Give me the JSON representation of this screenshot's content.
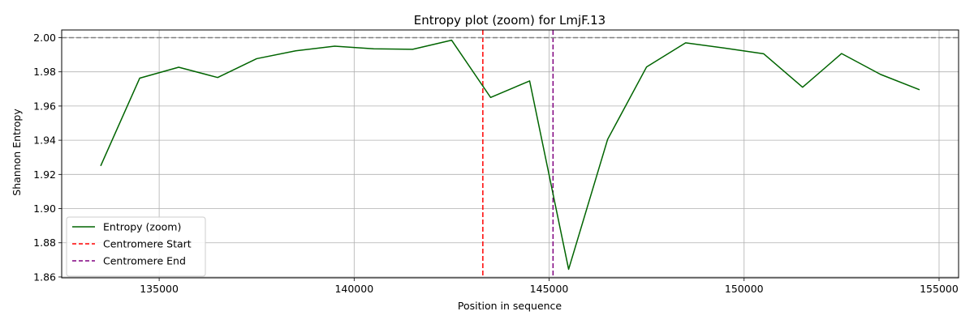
{
  "chart_data": {
    "type": "line",
    "title": "Entropy plot (zoom) for LmjF.13",
    "xlabel": "Position in sequence",
    "ylabel": "Shannon Entropy",
    "xlim": [
      132500,
      155500
    ],
    "ylim": [
      1.8595,
      2.0045
    ],
    "x_ticks": [
      135000,
      140000,
      145000,
      150000,
      155000
    ],
    "y_ticks": [
      1.86,
      1.88,
      1.9,
      1.92,
      1.94,
      1.96,
      1.98,
      2.0
    ],
    "grid": true,
    "legend_position": "lower-left",
    "series": [
      {
        "name": "Entropy (zoom)",
        "color": "#006400",
        "style": "solid",
        "x": [
          133500,
          134500,
          135500,
          136500,
          137500,
          138500,
          139500,
          140500,
          141500,
          142500,
          143500,
          144500,
          145500,
          146500,
          147500,
          148500,
          149500,
          150500,
          151500,
          152500,
          153500,
          154500
        ],
        "y": [
          1.925,
          1.9763,
          1.9827,
          1.9767,
          1.9877,
          1.9923,
          1.995,
          1.9935,
          1.9932,
          1.9985,
          1.965,
          1.9747,
          1.8645,
          1.9405,
          1.9829,
          1.997,
          1.9939,
          1.9906,
          1.971,
          1.9907,
          1.9785,
          1.9695
        ]
      }
    ],
    "reference_lines": [
      {
        "name": "Centromere Start",
        "orientation": "vertical",
        "value": 143300,
        "color": "#ff0000",
        "style": "dashed"
      },
      {
        "name": "Centromere End",
        "orientation": "vertical",
        "value": 145100,
        "color": "#800080",
        "style": "dashed"
      },
      {
        "name": "",
        "orientation": "horizontal",
        "value": 2.0,
        "color": "#808080",
        "style": "dashed"
      }
    ]
  }
}
